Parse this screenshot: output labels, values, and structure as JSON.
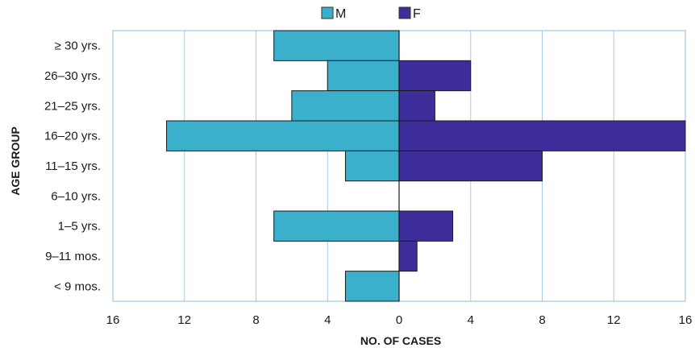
{
  "chart_data": {
    "type": "bar",
    "orientation": "horizontal",
    "layout": "population-pyramid",
    "categories": [
      "≥ 30 yrs.",
      "26–30 yrs.",
      "21–25 yrs.",
      "16–20 yrs.",
      "11–15 yrs.",
      "6–10 yrs.",
      "1–5 yrs.",
      "9–11 mos.",
      "< 9 mos."
    ],
    "series": [
      {
        "name": "M",
        "side": "left",
        "color": "#3ab0cd",
        "values": [
          7,
          4,
          6,
          13,
          3,
          0,
          7,
          0,
          3
        ]
      },
      {
        "name": "F",
        "side": "right",
        "color": "#3e2e9c",
        "values": [
          0,
          4,
          2,
          16,
          8,
          0,
          3,
          1,
          0
        ]
      }
    ],
    "xlabel": "NO. OF CASES",
    "ylabel": "AGE GROUP",
    "xlim": [
      -16,
      16
    ],
    "xticks": [
      -16,
      -12,
      -8,
      -4,
      0,
      4,
      8,
      12,
      16
    ],
    "xtick_labels": [
      "16",
      "12",
      "8",
      "4",
      "0",
      "4",
      "8",
      "12",
      "16"
    ],
    "grid": "vertical",
    "legend_position": "top-center"
  }
}
